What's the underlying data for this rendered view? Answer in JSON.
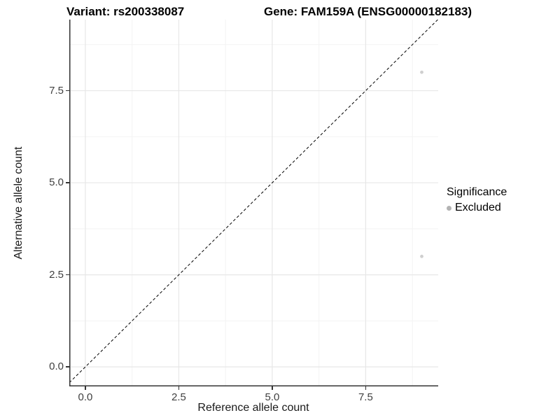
{
  "titles": {
    "variant": "Variant: rs200338087",
    "gene": "Gene: FAM159A (ENSG00000182183)"
  },
  "legend": {
    "title": "Significance",
    "items": [
      {
        "label": "Excluded",
        "color": "#b3b3b3"
      }
    ]
  },
  "colors": {
    "background": "#ffffff",
    "grid_major": "#e7e7e7",
    "grid_minor": "#f3f3f3",
    "axis_line": "#333333",
    "tick_text": "#404040",
    "identity_line": "#000000",
    "point_fill": "#cfcfcf"
  },
  "chart_data": {
    "type": "scatter",
    "title_left": "Variant: rs200338087",
    "title_right": "Gene: FAM159A (ENSG00000182183)",
    "xlabel": "Reference allele count",
    "ylabel": "Alternative allele count",
    "xlim": [
      -0.43,
      9.44
    ],
    "ylim": [
      -0.53,
      9.43
    ],
    "x_ticks": [
      {
        "v": 0,
        "label": "0.0"
      },
      {
        "v": 2.5,
        "label": "2.5"
      },
      {
        "v": 5,
        "label": "5.0"
      },
      {
        "v": 7.5,
        "label": "7.5"
      }
    ],
    "y_ticks": [
      {
        "v": 0,
        "label": "0.0"
      },
      {
        "v": 2.5,
        "label": "2.5"
      },
      {
        "v": 5,
        "label": "5.0"
      },
      {
        "v": 7.5,
        "label": "7.5"
      }
    ],
    "x_minor": [
      1.25,
      3.75,
      6.25,
      8.75
    ],
    "y_minor": [
      1.25,
      3.75,
      6.25,
      8.75
    ],
    "grid": true,
    "legend_position": "right",
    "identity_line": {
      "equation": "y = x",
      "style": "dashed",
      "color": "#000000"
    },
    "series": [
      {
        "name": "Excluded",
        "color": "#cfcfcf",
        "point_radius": 2.4,
        "points": [
          {
            "x": 9,
            "y": 8
          },
          {
            "x": 9,
            "y": 3
          }
        ]
      }
    ]
  }
}
